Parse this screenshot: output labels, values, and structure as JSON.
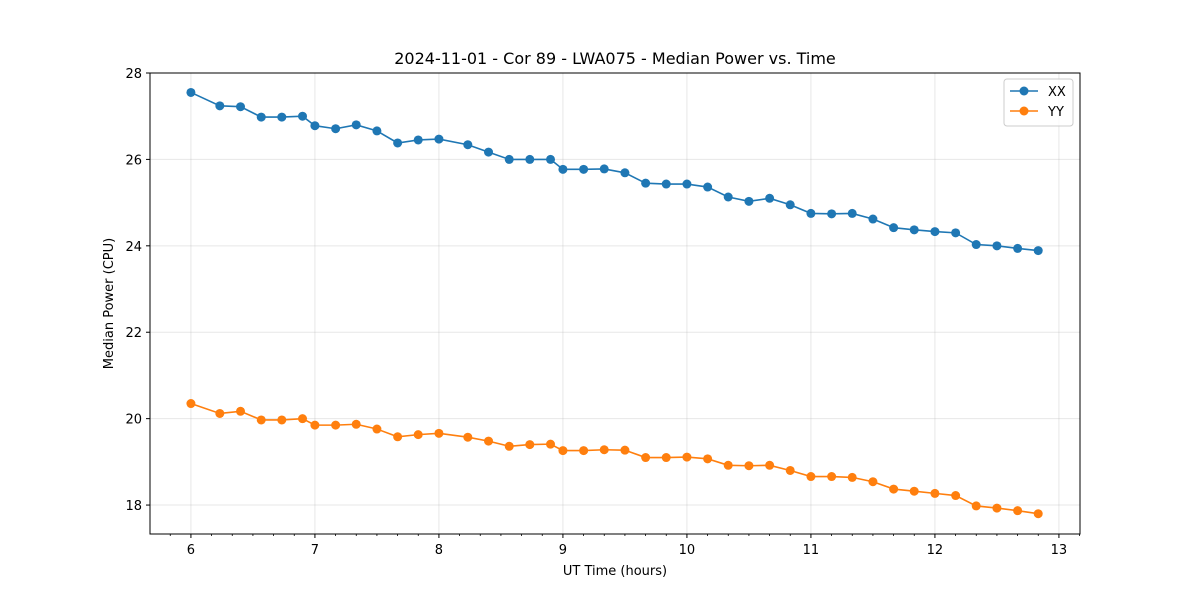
{
  "chart_data": {
    "type": "line",
    "title": "2024-11-01 - Cor 89 - LWA075 - Median Power vs. Time",
    "xlabel": "UT Time (hours)",
    "ylabel": "Median Power (CPU)",
    "xlim": [
      5.67,
      13.17
    ],
    "ylim": [
      17.33,
      28.0
    ],
    "xticks": [
      6,
      7,
      8,
      9,
      10,
      11,
      12,
      13
    ],
    "xtick_labels": [
      "6",
      "7",
      "8",
      "9",
      "10",
      "11",
      "12",
      "13"
    ],
    "yticks": [
      18,
      20,
      22,
      24,
      26,
      28
    ],
    "ytick_labels": [
      "18",
      "20",
      "22",
      "24",
      "26",
      "28"
    ],
    "grid": true,
    "legend_position": "top-right",
    "x": [
      6.0,
      6.233,
      6.4,
      6.567,
      6.733,
      6.9,
      7.0,
      7.167,
      7.333,
      7.5,
      7.667,
      7.833,
      8.0,
      8.233,
      8.4,
      8.567,
      8.733,
      8.9,
      9.0,
      9.167,
      9.333,
      9.5,
      9.667,
      9.833,
      10.0,
      10.167,
      10.333,
      10.5,
      10.667,
      10.833,
      11.0,
      11.167,
      11.333,
      11.5,
      11.667,
      11.833,
      12.0,
      12.167,
      12.333,
      12.5,
      12.667,
      12.833
    ],
    "series": [
      {
        "name": "XX",
        "color": "#1f77b4",
        "values": [
          27.55,
          27.24,
          27.22,
          26.98,
          26.98,
          27.0,
          26.78,
          26.71,
          26.8,
          26.66,
          26.38,
          26.45,
          26.47,
          26.34,
          26.17,
          26.0,
          26.0,
          26.0,
          25.77,
          25.77,
          25.78,
          25.69,
          25.45,
          25.43,
          25.43,
          25.36,
          25.13,
          25.03,
          25.1,
          24.95,
          24.75,
          24.74,
          24.75,
          24.62,
          24.42,
          24.37,
          24.33,
          24.3,
          24.03,
          24.0,
          23.94,
          23.89
        ]
      },
      {
        "name": "YY",
        "color": "#ff7f0e",
        "values": [
          20.35,
          20.12,
          20.17,
          19.97,
          19.97,
          20.0,
          19.85,
          19.85,
          19.87,
          19.76,
          19.58,
          19.63,
          19.66,
          19.57,
          19.48,
          19.36,
          19.4,
          19.41,
          19.26,
          19.26,
          19.28,
          19.27,
          19.1,
          19.1,
          19.11,
          19.07,
          18.92,
          18.91,
          18.92,
          18.8,
          18.66,
          18.66,
          18.64,
          18.54,
          18.37,
          18.32,
          18.27,
          18.22,
          17.98,
          17.93,
          17.87,
          17.8
        ]
      }
    ]
  }
}
